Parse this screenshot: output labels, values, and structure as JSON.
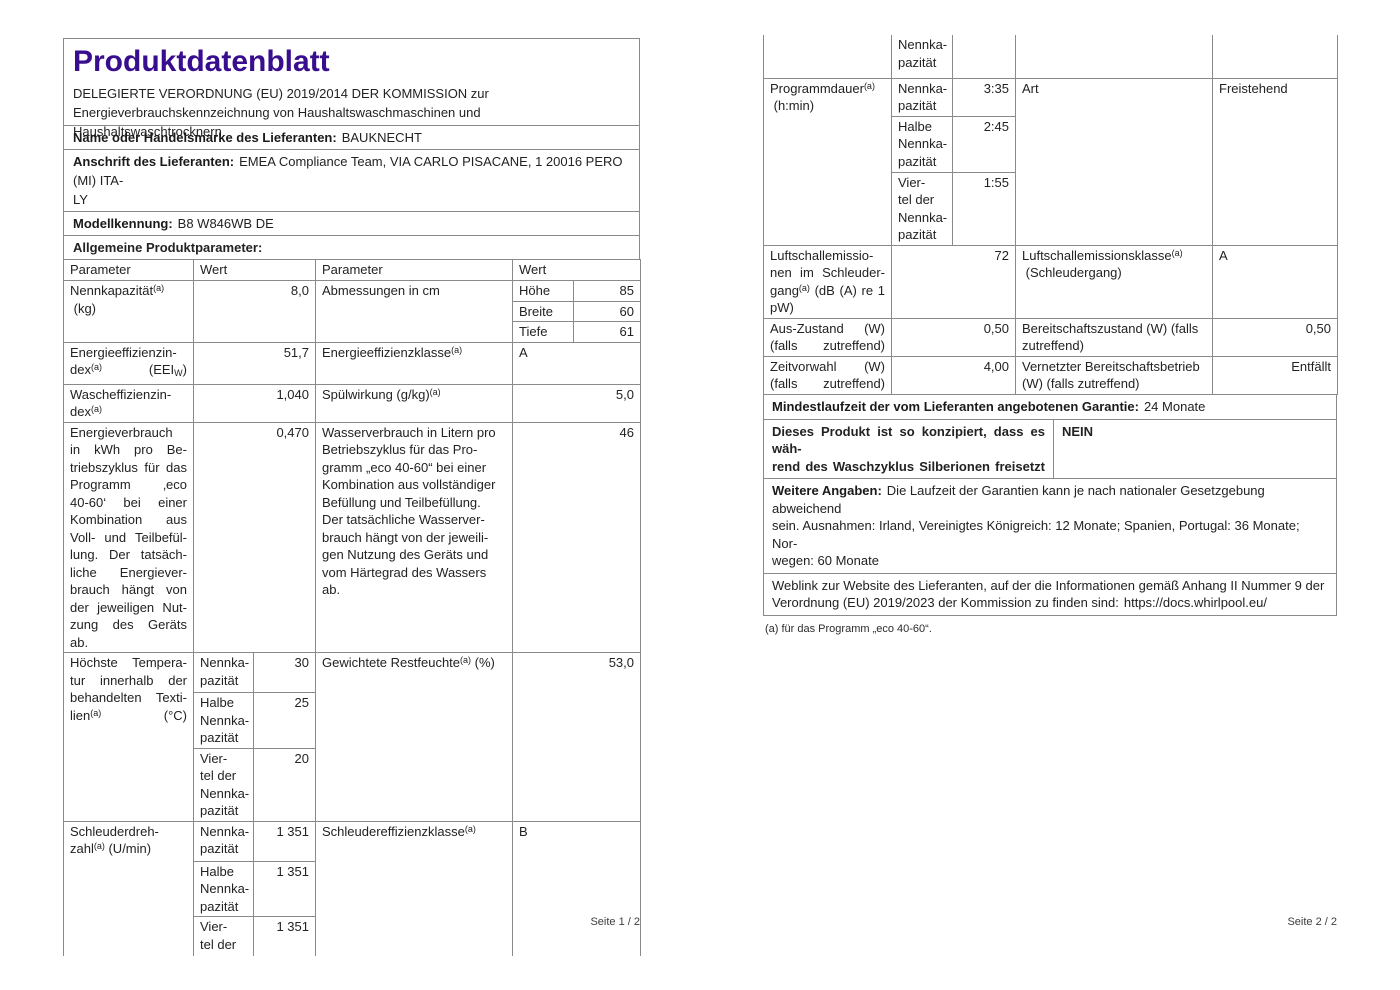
{
  "doc": {
    "title": "Produktdatenblatt",
    "regulation": "DELEGIERTE VERORDNUNG (EU) 2019/2014 DER KOMMISSION zur\nEnergieverbrauchskennzeichnung von Haushaltswaschmaschinen und Haushaltswaschtrocknern",
    "supplier_name_label": "Name oder Handelsmarke des Lieferanten:",
    "supplier_name": "BAUKNECHT",
    "supplier_address_label": "Anschrift des Lieferanten:",
    "supplier_address": "EMEA Compliance Team, VIA CARLO PISACANE, 1 20016 PERO (MI) ITA-\nLY",
    "model_label": "Modellkennung:",
    "model": "B8 W846WB DE",
    "general_params_label": "Allgemeine Produktparameter:",
    "col_headers": [
      "Parameter",
      "Wert",
      "Parameter",
      "Wert"
    ]
  },
  "t1": {
    "r1": {
      "p1": "Nennkapazität^(a)^\n (kg)",
      "v1": "8,0",
      "p2": "Abmessungen in cm",
      "dims": [
        {
          "k": "Höhe",
          "v": "85"
        },
        {
          "k": "Breite",
          "v": "60"
        },
        {
          "k": "Tiefe",
          "v": "61"
        }
      ]
    },
    "r2": {
      "p1": "Energieeffizienzin-\ndex^(a)^ (EEI~W~)",
      "v1": "51,7",
      "p2": "Energieeffizienzklasse^(a)^",
      "v2": "A"
    },
    "r3": {
      "p1": "Wascheffizienzin-\ndex^(a)^",
      "v1": "1,040",
      "p2": "Spülwirkung (g/kg)^(a)^",
      "v2": "5,0"
    },
    "r4": {
      "p1": "Energieverbrauch\nin kWh pro Be-\ntriebszyklus für das\nProgramm ‚eco\n40-60‘ bei einer\nKombination aus\nVoll- und Teilbefül-\nlung. Der tatsäch-\nliche Energiever-\nbrauch hängt von\nder jeweiligen Nut-\nzung des Geräts ab.",
      "v1": "0,470",
      "p2": "Wasserverbrauch in Litern pro\nBetriebszyklus für das Pro-\ngramm „eco 40-60“ bei einer\nKombination aus vollständiger\nBefüllung und Teilbefüllung.\nDer tatsächliche Wasserver-\nbrauch hängt von der jeweili-\ngen Nutzung des Geräts und\nvom Härtegrad des Wassers\nab.",
      "v2": "46"
    },
    "r5": {
      "p1": "Höchste Tempera-\ntur innerhalb der\nbehandelten Texti-\nlien^(a)^ (°C)",
      "subs": [
        {
          "k": "Nennka-\npazität",
          "v": "30"
        },
        {
          "k": "Halbe\nNennka-\npazität",
          "v": "25"
        },
        {
          "k": "Vier-\ntel der\nNennka-\npazität",
          "v": "20"
        }
      ],
      "p2": "Gewichtete Restfeuchte^(a)^ (%)",
      "v2": "53,0"
    },
    "r6": {
      "p1": "Schleuderdreh-\nzahl^(a)^ (U/min)",
      "subs": [
        {
          "k": "Nennka-\npazität",
          "v": "1 351"
        },
        {
          "k": "Halbe\nNennka-\npazität",
          "v": "1 351"
        },
        {
          "k": "Vier-\ntel der",
          "v": "1 351"
        }
      ],
      "p2": "Schleudereffizienzklasse^(a)^",
      "v2": "B"
    },
    "footer": "Seite 1 / 2"
  },
  "t2": {
    "r0": {
      "sub": "Nennka-\npazität"
    },
    "r1": {
      "p1": "Programmdauer^(a)^\n (h:min)",
      "subs": [
        {
          "k": "Nennka-\npazität",
          "v": "3:35"
        },
        {
          "k": "Halbe\nNennka-\npazität",
          "v": "2:45"
        },
        {
          "k": "Vier-\ntel der\nNennka-\npazität",
          "v": "1:55"
        }
      ],
      "p2": "Art",
      "v2": "Freistehend"
    },
    "r2": {
      "p1": "Luftschallemissio-\nnen im Schleuder-\ngang^(a)^ (dB (A) re 1\npW)",
      "v1": "72",
      "p2": "Luftschallemissionsklasse^(a)^\n (Schleudergang)",
      "v2": "A"
    },
    "r3": {
      "p1": "Aus-Zustand (W)\n(falls zutreffend)",
      "v1": "0,50",
      "p2": "Bereitschaftszustand (W) (falls\nzutreffend)",
      "v2": "0,50"
    },
    "r4": {
      "p1": "Zeitvorwahl (W)\n(falls zutreffend)",
      "v1": "4,00",
      "p2": "Vernetzter Bereitschaftsbetrieb\n(W) (falls zutreffend)",
      "v2": "Entfällt"
    },
    "warranty_label": "Mindestlaufzeit der vom Lieferanten angebotenen Garantie:",
    "warranty_value": "24 Monate",
    "silver_label": "Dieses Produkt ist so konzipiert, dass es wäh-\nrend des Waschzyklus Silberionen freisetzt",
    "silver_value": "NEIN",
    "more_label": "Weitere Angaben:",
    "more_text": "Die Laufzeit der Garantien kann je nach nationaler Gesetzgebung abweichend\nsein. Ausnahmen: Irland, Vereinigtes Königreich: 12 Monate; Spanien, Portugal: 36 Monate; Nor-\nwegen: 60 Monate",
    "weblink_label": "Weblink zur Website des Lieferanten, auf der die Informationen gemäß Anhang II Nummer 9 der\nVerordnung (EU) 2019/2023 der Kommission zu finden sind:",
    "weblink_url": "https://docs.whirlpool.eu/",
    "footnote": "(a) für das Programm „eco 40-60“.",
    "footer": "Seite 2 / 2"
  }
}
